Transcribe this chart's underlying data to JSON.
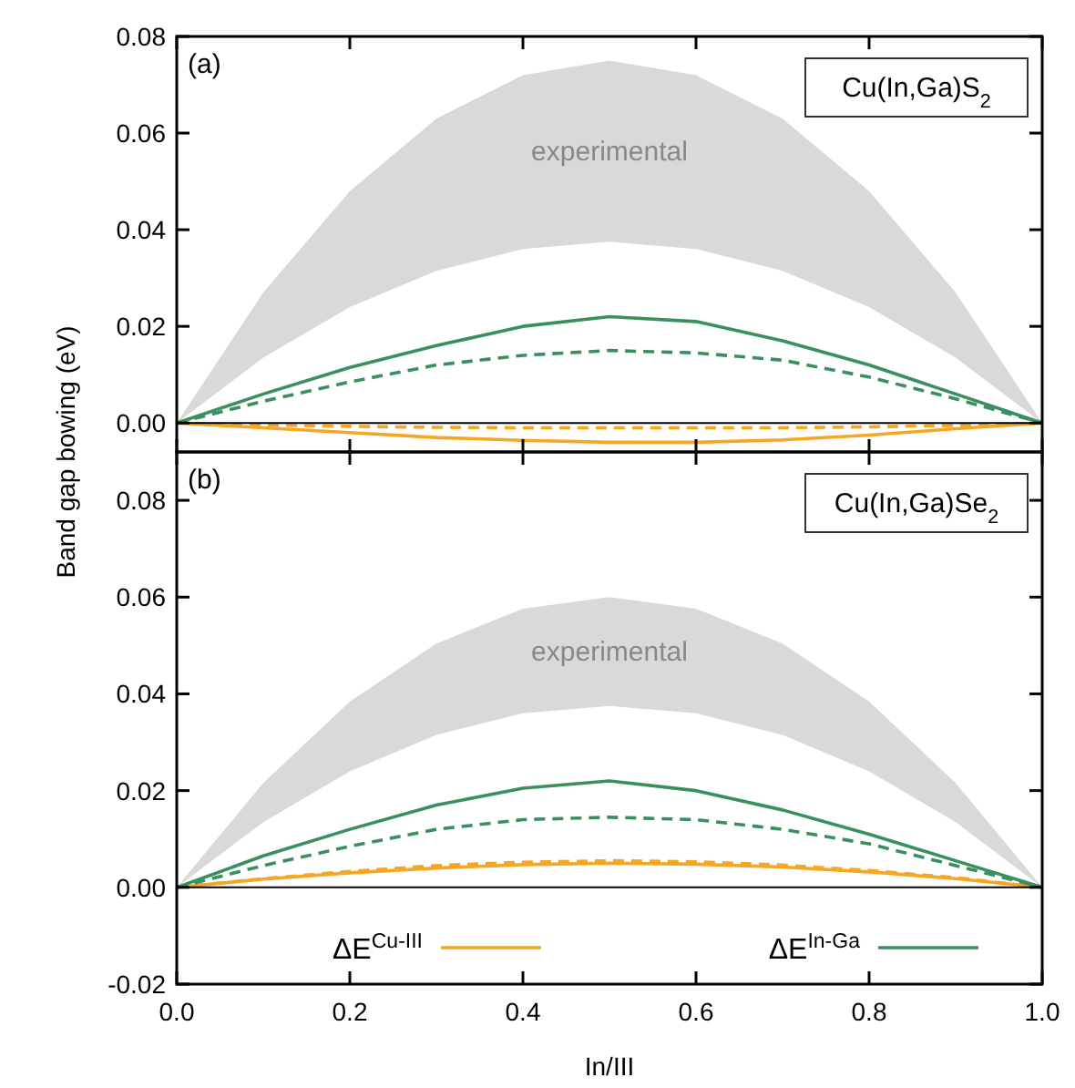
{
  "chart_data": [
    {
      "type": "line",
      "ylabel": "Band gap bowing (eV)",
      "annotations": [
        "(a)",
        "Cu(In,Ga)S$_{2}$"
      ],
      "x": [
        0,
        0.1,
        0.2,
        0.3,
        0.4,
        0.5,
        0.6,
        0.7,
        0.8,
        0.9,
        1
      ],
      "xlim": [
        0,
        1
      ],
      "xticks": [
        {
          "value": 0,
          "label": null
        },
        {
          "value": 0.2,
          "label": null
        },
        {
          "value": 0.4,
          "label": null
        },
        {
          "value": 0.6,
          "label": null
        },
        {
          "value": 0.8,
          "label": null
        },
        {
          "value": 1,
          "label": null
        }
      ],
      "ylim": [
        -0.006,
        0.08
      ],
      "yticks": [
        {
          "value": 0,
          "label": "0.00"
        },
        {
          "value": 0.02,
          "label": "0.02"
        },
        {
          "value": 0.04,
          "label": "0.04"
        },
        {
          "value": 0.06,
          "label": "0.06"
        },
        {
          "value": 0.08,
          "label": "0.08"
        }
      ],
      "tick_labels": "y",
      "legend": false,
      "ref_lines": [
        {
          "axis": "y",
          "value": 0,
          "color": "#000000"
        }
      ],
      "series": [
        {
          "name": "experimental",
          "values": [
            null,
            null,
            null,
            null,
            null,
            null,
            null,
            null,
            null,
            null,
            null
          ],
          "lower": [
            0,
            0.0135,
            0.024,
            0.0315,
            0.036,
            0.0375,
            0.036,
            0.0315,
            0.024,
            0.0135,
            0
          ],
          "upper": [
            0,
            0.027,
            0.048,
            0.063,
            0.072,
            0.075,
            0.072,
            0.063,
            0.048,
            0.027,
            0
          ]
        },
        {
          "color": "#f5a623",
          "line_style": "solid",
          "values": [
            0,
            -0.001,
            -0.002,
            -0.003,
            -0.0036,
            -0.004,
            -0.004,
            -0.0035,
            -0.0025,
            -0.0012,
            0
          ]
        },
        {
          "color": "#f5a623",
          "line_style": "dashed",
          "values": [
            0,
            -0.0004,
            -0.0007,
            -0.0009,
            -0.001,
            -0.001,
            -0.001,
            -0.001,
            -0.0008,
            -0.0005,
            0
          ]
        },
        {
          "color": "#3a8f5e",
          "line_style": "solid",
          "values": [
            0,
            0.006,
            0.0115,
            0.016,
            0.02,
            0.022,
            0.021,
            0.017,
            0.012,
            0.006,
            0
          ]
        },
        {
          "color": "#3a8f5e",
          "line_style": "dashed",
          "values": [
            0,
            0.0045,
            0.0085,
            0.012,
            0.014,
            0.015,
            0.0145,
            0.013,
            0.0095,
            0.005,
            0
          ]
        }
      ]
    },
    {
      "type": "line",
      "xlabel": "In/III",
      "annotations": [
        "(b)",
        "Cu(In,Ga)Se$_{2}$"
      ],
      "x": [
        0,
        0.1,
        0.2,
        0.3,
        0.4,
        0.5,
        0.6,
        0.7,
        0.8,
        0.9,
        1
      ],
      "xlim": [
        0,
        1
      ],
      "xticks": [
        {
          "value": 0,
          "label": "0.0"
        },
        {
          "value": 0.2,
          "label": "0.2"
        },
        {
          "value": 0.4,
          "label": "0.4"
        },
        {
          "value": 0.6,
          "label": "0.6"
        },
        {
          "value": 0.8,
          "label": "0.8"
        },
        {
          "value": 1,
          "label": "1.0"
        }
      ],
      "ylim": [
        -0.02,
        0.09
      ],
      "yticks": [
        {
          "value": -0.02,
          "label": "-0.02"
        },
        {
          "value": 0,
          "label": "0.00"
        },
        {
          "value": 0.02,
          "label": "0.02"
        },
        {
          "value": 0.04,
          "label": "0.04"
        },
        {
          "value": 0.06,
          "label": "0.06"
        },
        {
          "value": 0.08,
          "label": "0.08"
        }
      ],
      "legend": "bottom",
      "ref_lines": [
        {
          "axis": "y",
          "value": 0,
          "color": "#000000"
        }
      ],
      "series": [
        {
          "name": "experimental",
          "values": [
            null,
            null,
            null,
            null,
            null,
            null,
            null,
            null,
            null,
            null,
            null
          ],
          "lower": [
            0,
            0.0135,
            0.024,
            0.0315,
            0.036,
            0.0375,
            0.036,
            0.0315,
            0.024,
            0.0135,
            0
          ],
          "upper": [
            0,
            0.0216,
            0.0384,
            0.0504,
            0.0576,
            0.06,
            0.0576,
            0.0504,
            0.0384,
            0.0216,
            0
          ]
        },
        {
          "name": "ΔE$^{Cu-III}$",
          "color": "#f5a623",
          "line_style": "solid",
          "values": [
            0,
            0.0017,
            0.003,
            0.004,
            0.0047,
            0.005,
            0.0048,
            0.0042,
            0.0032,
            0.0018,
            0
          ]
        },
        {
          "color": "#f5a623",
          "line_style": "dashed",
          "values": [
            0,
            0.0018,
            0.0033,
            0.0045,
            0.0052,
            0.0055,
            0.0053,
            0.0046,
            0.0035,
            0.002,
            0
          ]
        },
        {
          "name": "ΔE$^{In-Ga}$",
          "color": "#3a8f5e",
          "line_style": "solid",
          "values": [
            0,
            0.0065,
            0.012,
            0.017,
            0.0205,
            0.022,
            0.02,
            0.016,
            0.011,
            0.0055,
            0
          ]
        },
        {
          "color": "#3a8f5e",
          "line_style": "dashed",
          "values": [
            0,
            0.0045,
            0.0085,
            0.012,
            0.014,
            0.0145,
            0.014,
            0.012,
            0.009,
            0.0045,
            0
          ]
        }
      ]
    }
  ]
}
